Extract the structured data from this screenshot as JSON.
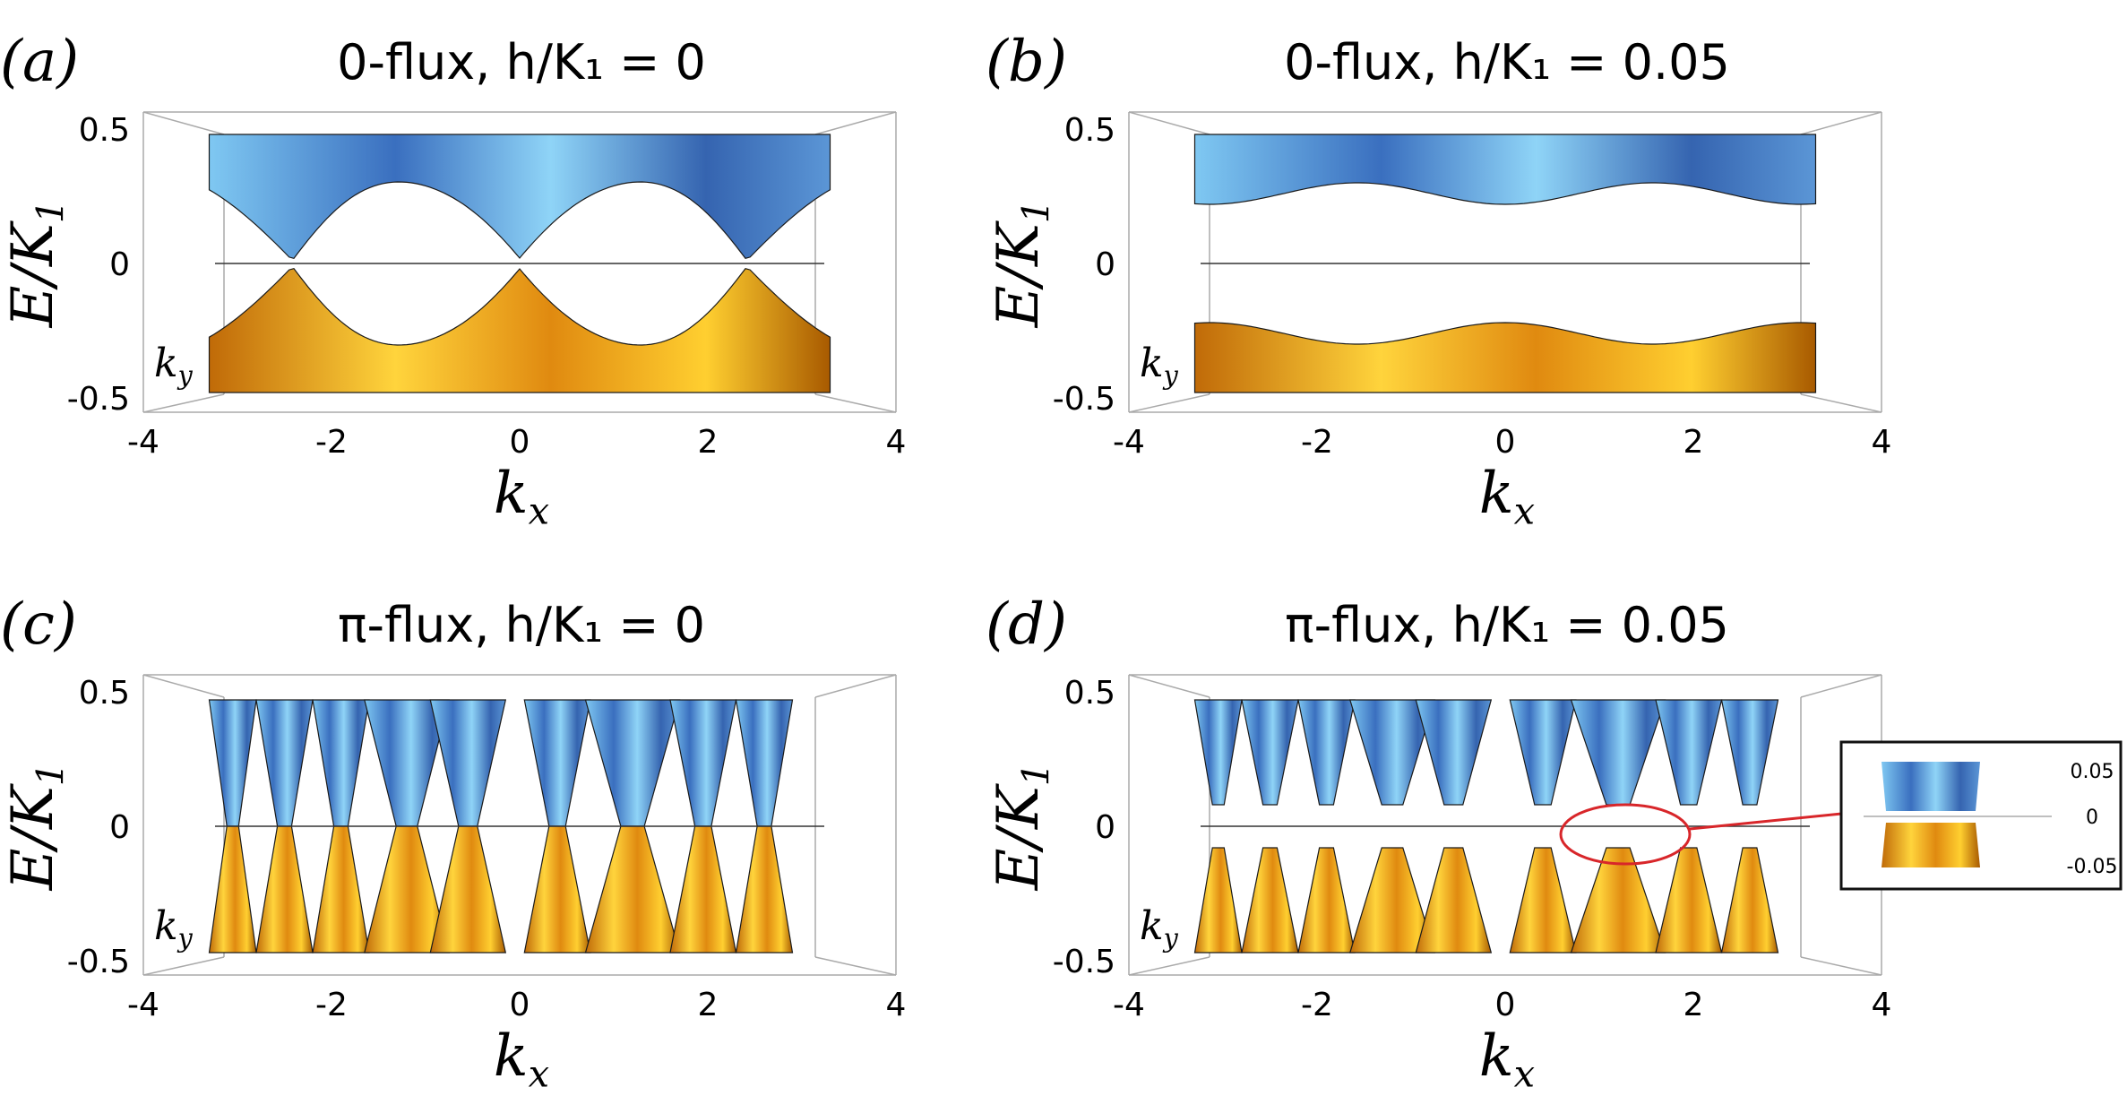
{
  "panels": [
    {
      "label": "(a)",
      "title": "0-flux, h/K₁ = 0",
      "xticks": [
        "-4",
        "-2",
        "0",
        "2",
        "4"
      ],
      "yticks": [
        "0.5",
        "0",
        "-0.5"
      ],
      "xlabel": {
        "main": "k",
        "sub": "x"
      },
      "ylabel": {
        "main": "E/K",
        "sub": "1"
      },
      "depth_label": {
        "main": "k",
        "sub": "y"
      }
    },
    {
      "label": "(b)",
      "title": "0-flux, h/K₁ = 0.05",
      "xticks": [
        "-4",
        "-2",
        "0",
        "2",
        "4"
      ],
      "yticks": [
        "0.5",
        "0",
        "-0.5"
      ],
      "xlabel": {
        "main": "k",
        "sub": "x"
      },
      "ylabel": {
        "main": "E/K",
        "sub": "1"
      },
      "depth_label": {
        "main": "k",
        "sub": "y"
      }
    },
    {
      "label": "(c)",
      "title": "π-flux, h/K₁ = 0",
      "xticks": [
        "-4",
        "-2",
        "0",
        "2",
        "4"
      ],
      "yticks": [
        "0.5",
        "0",
        "-0.5"
      ],
      "xlabel": {
        "main": "k",
        "sub": "x"
      },
      "ylabel": {
        "main": "E/K",
        "sub": "1"
      },
      "depth_label": {
        "main": "k",
        "sub": "y"
      }
    },
    {
      "label": "(d)",
      "title": "π-flux, h/K₁ = 0.05",
      "xticks": [
        "-4",
        "-2",
        "0",
        "2",
        "4"
      ],
      "yticks": [
        "0.5",
        "0",
        "-0.5"
      ],
      "xlabel": {
        "main": "k",
        "sub": "x"
      },
      "ylabel": {
        "main": "E/K",
        "sub": "1"
      },
      "depth_label": {
        "main": "k",
        "sub": "y"
      }
    }
  ],
  "inset": {
    "yticks": [
      "0.05",
      "0",
      "-0.05"
    ]
  }
}
